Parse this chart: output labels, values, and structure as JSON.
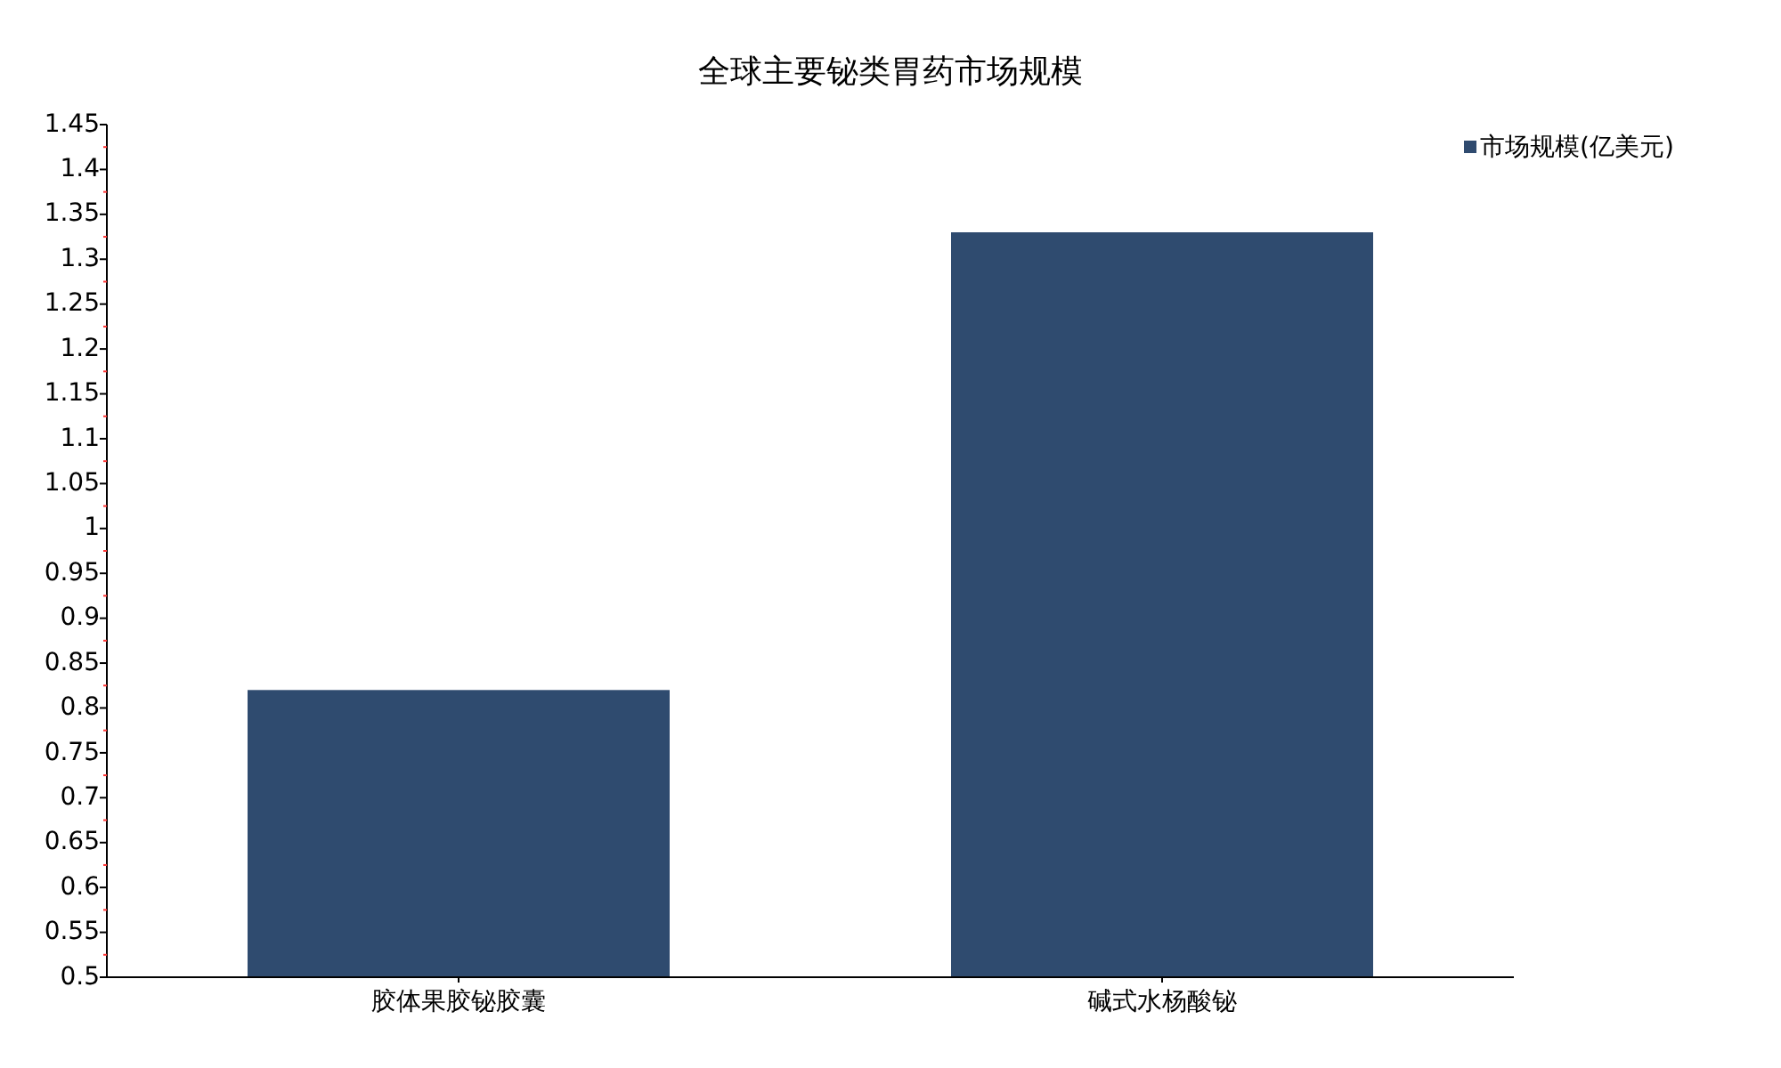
{
  "chart_data": {
    "type": "bar",
    "title": "全球主要铋类胃药市场规模",
    "categories": [
      "胶体果胶铋胶囊",
      "碱式水杨酸铋"
    ],
    "series": [
      {
        "name": "市场规模(亿美元)",
        "color": "#2f4b6f",
        "values": [
          0.82,
          1.33
        ]
      }
    ],
    "ylim": [
      0.5,
      1.45
    ],
    "yticks": [
      0.5,
      {
        "value": 0.525,
        "label": null
      },
      0.55,
      {
        "value": 0.575,
        "label": null
      },
      0.6,
      {
        "value": 0.625,
        "label": null
      },
      0.65,
      {
        "value": 0.675,
        "label": null
      },
      0.7,
      {
        "value": 0.725,
        "label": null
      },
      0.75,
      {
        "value": 0.775,
        "label": null
      },
      0.8,
      {
        "value": 0.825,
        "label": null
      },
      0.85,
      {
        "value": 0.875,
        "label": null
      },
      0.9,
      {
        "value": 0.925,
        "label": null
      },
      0.95,
      {
        "value": 0.975,
        "label": null
      },
      1,
      {
        "value": 1.025,
        "label": null
      },
      1.05,
      {
        "value": 1.075,
        "label": null
      },
      1.1,
      {
        "value": 1.125,
        "label": null
      },
      1.15,
      {
        "value": 1.175,
        "label": null
      },
      1.2,
      {
        "value": 1.225,
        "label": null
      },
      1.25,
      {
        "value": 1.275,
        "label": null
      },
      1.3,
      {
        "value": 1.325,
        "label": null
      },
      1.35,
      {
        "value": 1.375,
        "label": null
      },
      1.4,
      {
        "value": 1.425,
        "label": null
      },
      1.45
    ],
    "legend": "top right"
  }
}
